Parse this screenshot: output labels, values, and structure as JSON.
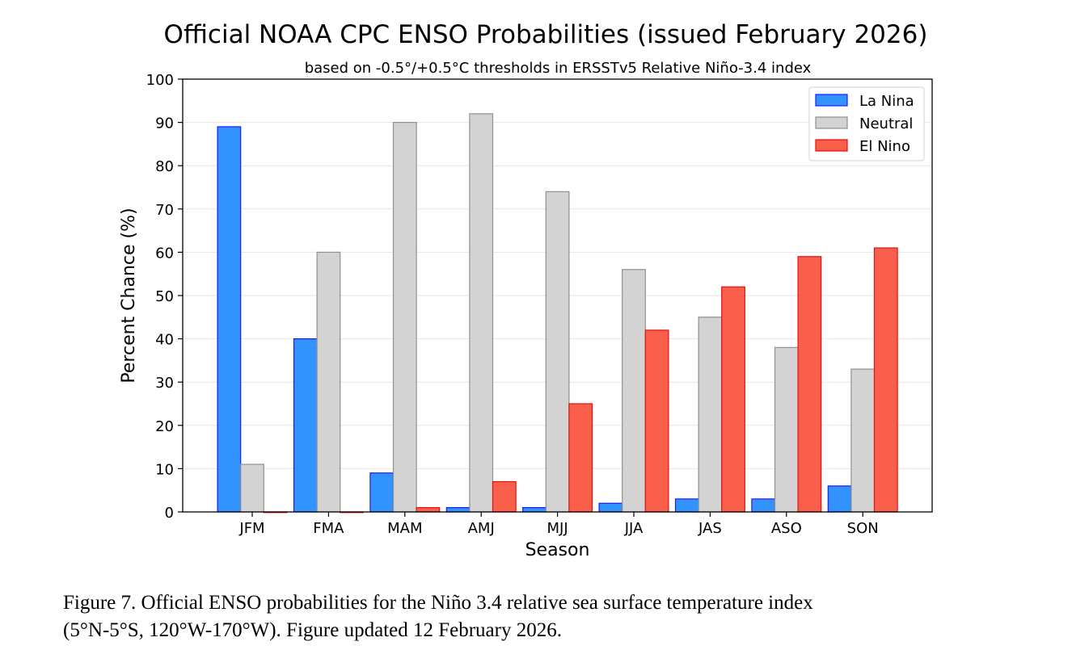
{
  "chart_data": {
    "type": "bar",
    "title": "Official NOAA CPC ENSO Probabilities (issued February 2026)",
    "subtitle": "based on -0.5°/+0.5°C thresholds in ERSSTv5 Relative Niño-3.4 index",
    "xlabel": "Season",
    "ylabel": "Percent Chance (%)",
    "ylim": [
      0,
      100
    ],
    "yticks": [
      0,
      10,
      20,
      30,
      40,
      50,
      60,
      70,
      80,
      90,
      100
    ],
    "grid": true,
    "legend_position": "top-right",
    "categories": [
      "JFM",
      "FMA",
      "MAM",
      "AMJ",
      "MJJ",
      "JJA",
      "JAS",
      "ASO",
      "SON"
    ],
    "series": [
      {
        "name": "La Nina",
        "color": "#3293fe",
        "edge": "#1a1aff",
        "values": [
          89,
          40,
          9,
          1,
          1,
          2,
          3,
          3,
          6
        ]
      },
      {
        "name": "Neutral",
        "color": "#d3d3d3",
        "edge": "#909090",
        "values": [
          11,
          60,
          90,
          92,
          74,
          56,
          45,
          38,
          33
        ]
      },
      {
        "name": "El Nino",
        "color": "#fa5f4b",
        "edge": "#e01010",
        "values": [
          0,
          0,
          1,
          7,
          25,
          42,
          52,
          59,
          61
        ]
      }
    ]
  },
  "caption": {
    "line1": "Figure 7. Official ENSO probabilities for the Niño 3.4 relative sea surface temperature index",
    "line2": "(5°N-5°S, 120°W-170°W). Figure updated 12 February 2026."
  }
}
